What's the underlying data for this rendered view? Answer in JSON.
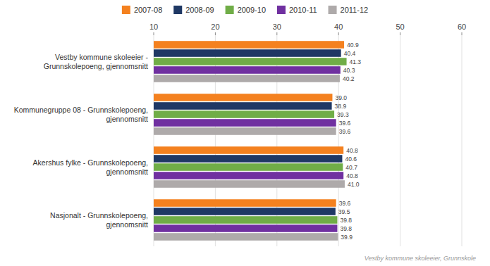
{
  "chart_data": {
    "type": "bar",
    "orientation": "horizontal",
    "categories": [
      "Vestby kommune skoleeier -\nGrunnskolepoeng, gjennomsnitt",
      "Kommunegruppe 08 - Grunnskolepoeng,\ngjennomsnitt",
      "Akershus fylke - Grunnskolepoeng,\ngjennomsnitt",
      "Nasjonalt - Grunnskolepoeng,\ngjennomsnitt"
    ],
    "series": [
      {
        "name": "2007-08",
        "color": "#F4811F",
        "values": [
          40.9,
          39.0,
          40.8,
          39.6
        ],
        "value_labels": [
          "40.9",
          "39.0",
          "40.8",
          "39.6"
        ]
      },
      {
        "name": "2008-09",
        "color": "#1F3864",
        "values": [
          40.4,
          38.9,
          40.6,
          39.5
        ],
        "value_labels": [
          "40.4",
          "38.9",
          "40.6",
          "39.5"
        ]
      },
      {
        "name": "2009-10",
        "color": "#70AD47",
        "values": [
          41.3,
          39.3,
          40.7,
          39.8
        ],
        "value_labels": [
          "41.3",
          "39.3",
          "40.7",
          "39.8"
        ]
      },
      {
        "name": "2010-11",
        "color": "#7030A0",
        "values": [
          40.3,
          39.6,
          40.8,
          39.8
        ],
        "value_labels": [
          "40.3",
          "39.6",
          "40.8",
          "39.8"
        ]
      },
      {
        "name": "2011-12",
        "color": "#AEAAAA",
        "values": [
          40.2,
          39.6,
          41.0,
          39.9
        ],
        "value_labels": [
          "40.2",
          "39.6",
          "41.0",
          "39.9"
        ]
      }
    ],
    "xlim": [
      10,
      60
    ],
    "xticks": [
      10,
      20,
      30,
      40,
      50,
      60
    ],
    "grid": true,
    "legend": "top",
    "data_labels": true,
    "annotations": [
      "Vestby kommune skoleeier, Grunnskole"
    ]
  }
}
